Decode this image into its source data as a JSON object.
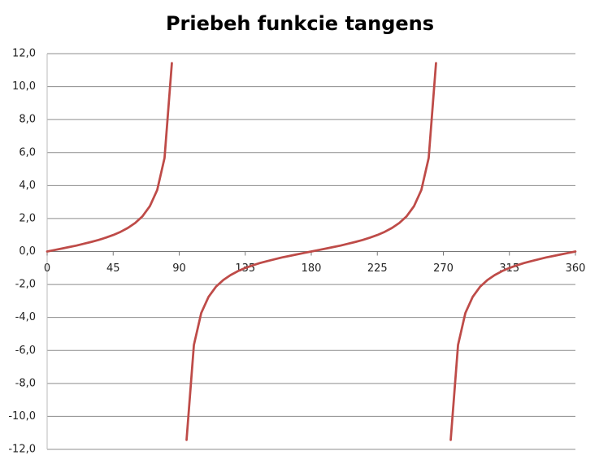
{
  "chart_data": {
    "type": "line",
    "title": "Priebeh funkcie tangens",
    "x": [
      0,
      5,
      10,
      15,
      20,
      25,
      30,
      35,
      40,
      45,
      50,
      55,
      60,
      65,
      70,
      75,
      80,
      85,
      90,
      95,
      100,
      105,
      110,
      115,
      120,
      125,
      130,
      135,
      140,
      145,
      150,
      155,
      160,
      165,
      170,
      175,
      180,
      185,
      190,
      195,
      200,
      205,
      210,
      215,
      220,
      225,
      230,
      235,
      240,
      245,
      250,
      255,
      260,
      265,
      270,
      275,
      280,
      285,
      290,
      295,
      300,
      305,
      310,
      315,
      320,
      325,
      330,
      335,
      340,
      345,
      350,
      355,
      360
    ],
    "values": [
      0,
      0.09,
      0.18,
      0.27,
      0.36,
      0.47,
      0.58,
      0.7,
      0.84,
      1,
      1.19,
      1.43,
      1.73,
      2.14,
      2.75,
      3.73,
      5.67,
      11.43,
      null,
      -11.43,
      -5.67,
      -3.73,
      -2.75,
      -2.14,
      -1.73,
      -1.43,
      -1.19,
      -1,
      -0.84,
      -0.7,
      -0.58,
      -0.47,
      -0.36,
      -0.27,
      -0.18,
      -0.09,
      0,
      0.09,
      0.18,
      0.27,
      0.36,
      0.47,
      0.58,
      0.7,
      0.84,
      1,
      1.19,
      1.43,
      1.73,
      2.14,
      2.75,
      3.73,
      5.67,
      11.43,
      null,
      -11.43,
      -5.67,
      -3.73,
      -2.75,
      -2.14,
      -1.73,
      -1.43,
      -1.19,
      -1,
      -0.84,
      -0.7,
      -0.58,
      -0.47,
      -0.36,
      -0.27,
      -0.18,
      -0.09,
      0
    ],
    "color": "#be4b48",
    "xlim": [
      0,
      360
    ],
    "xticks": [
      0,
      45,
      90,
      135,
      180,
      225,
      270,
      315,
      360
    ],
    "ylim": [
      -12,
      12
    ],
    "yticks": [
      {
        "value": -12,
        "label": "-12,0"
      },
      {
        "value": -10,
        "label": "-10,0"
      },
      {
        "value": -8,
        "label": "-8,0"
      },
      {
        "value": -6,
        "label": "-6,0"
      },
      {
        "value": -4,
        "label": "-4,0"
      },
      {
        "value": -2,
        "label": "-2,0"
      },
      {
        "value": 0,
        "label": "0,0"
      },
      {
        "value": 2,
        "label": "2,0"
      },
      {
        "value": 4,
        "label": "4,0"
      },
      {
        "value": 6,
        "label": "6,0"
      },
      {
        "value": 8,
        "label": "8,0"
      },
      {
        "value": 10,
        "label": "10,0"
      },
      {
        "value": 12,
        "label": "12,0"
      }
    ],
    "grid": true
  }
}
